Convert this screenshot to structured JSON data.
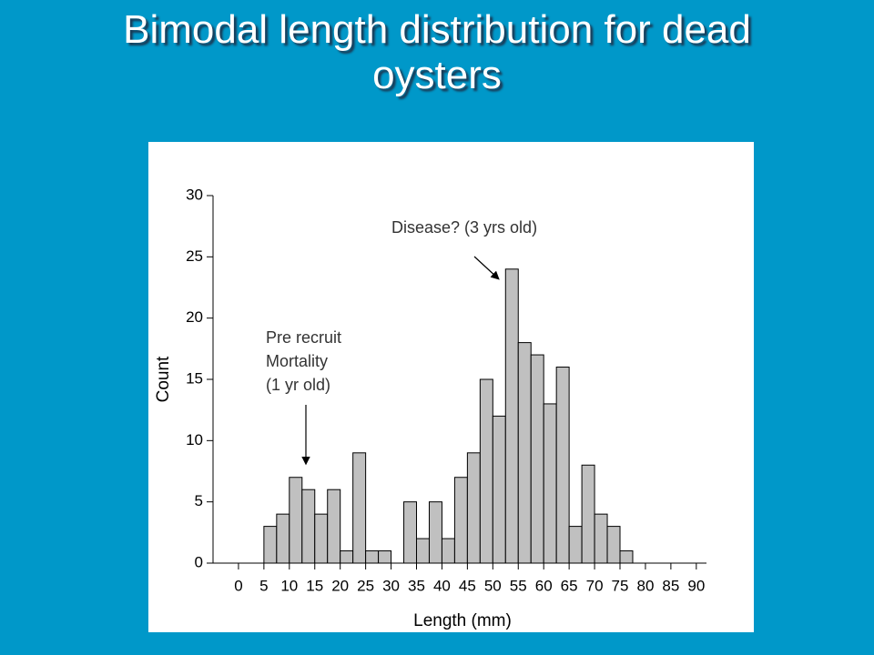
{
  "chart_data": {
    "type": "histogram",
    "title": "Bimodal length distribution for dead oysters",
    "x_label": "Length (mm)",
    "y_label": "Count",
    "annotations": [
      [
        "Disease? (3 yrs old)"
      ],
      [
        "Pre recruit",
        "Mortality",
        "(1 yr old)"
      ]
    ],
    "bins": [
      5,
      7.5,
      10,
      12.5,
      15,
      17.5,
      20,
      22.5,
      25,
      27.5,
      30,
      32.5,
      35,
      37.5,
      40,
      42.5,
      45,
      47.5,
      50,
      52.5,
      55,
      57.5,
      60,
      62.5,
      65,
      67.5,
      70,
      72.5,
      75,
      77.5
    ],
    "values": [
      3,
      4,
      7,
      6,
      4,
      6,
      1,
      9,
      1,
      1,
      0,
      5,
      2,
      5,
      2,
      7,
      9,
      15,
      12,
      24,
      18,
      17,
      13,
      16,
      3,
      8,
      4,
      3,
      1
    ],
    "color": "#c0c0c0",
    "xlim": [
      -5,
      92
    ],
    "xticks": [
      0,
      5,
      10,
      15,
      20,
      25,
      30,
      35,
      40,
      45,
      50,
      55,
      60,
      65,
      70,
      75,
      80,
      85,
      90
    ],
    "ylim": [
      0,
      30
    ],
    "yticks": [
      0,
      5,
      10,
      15,
      20,
      25,
      30
    ]
  }
}
